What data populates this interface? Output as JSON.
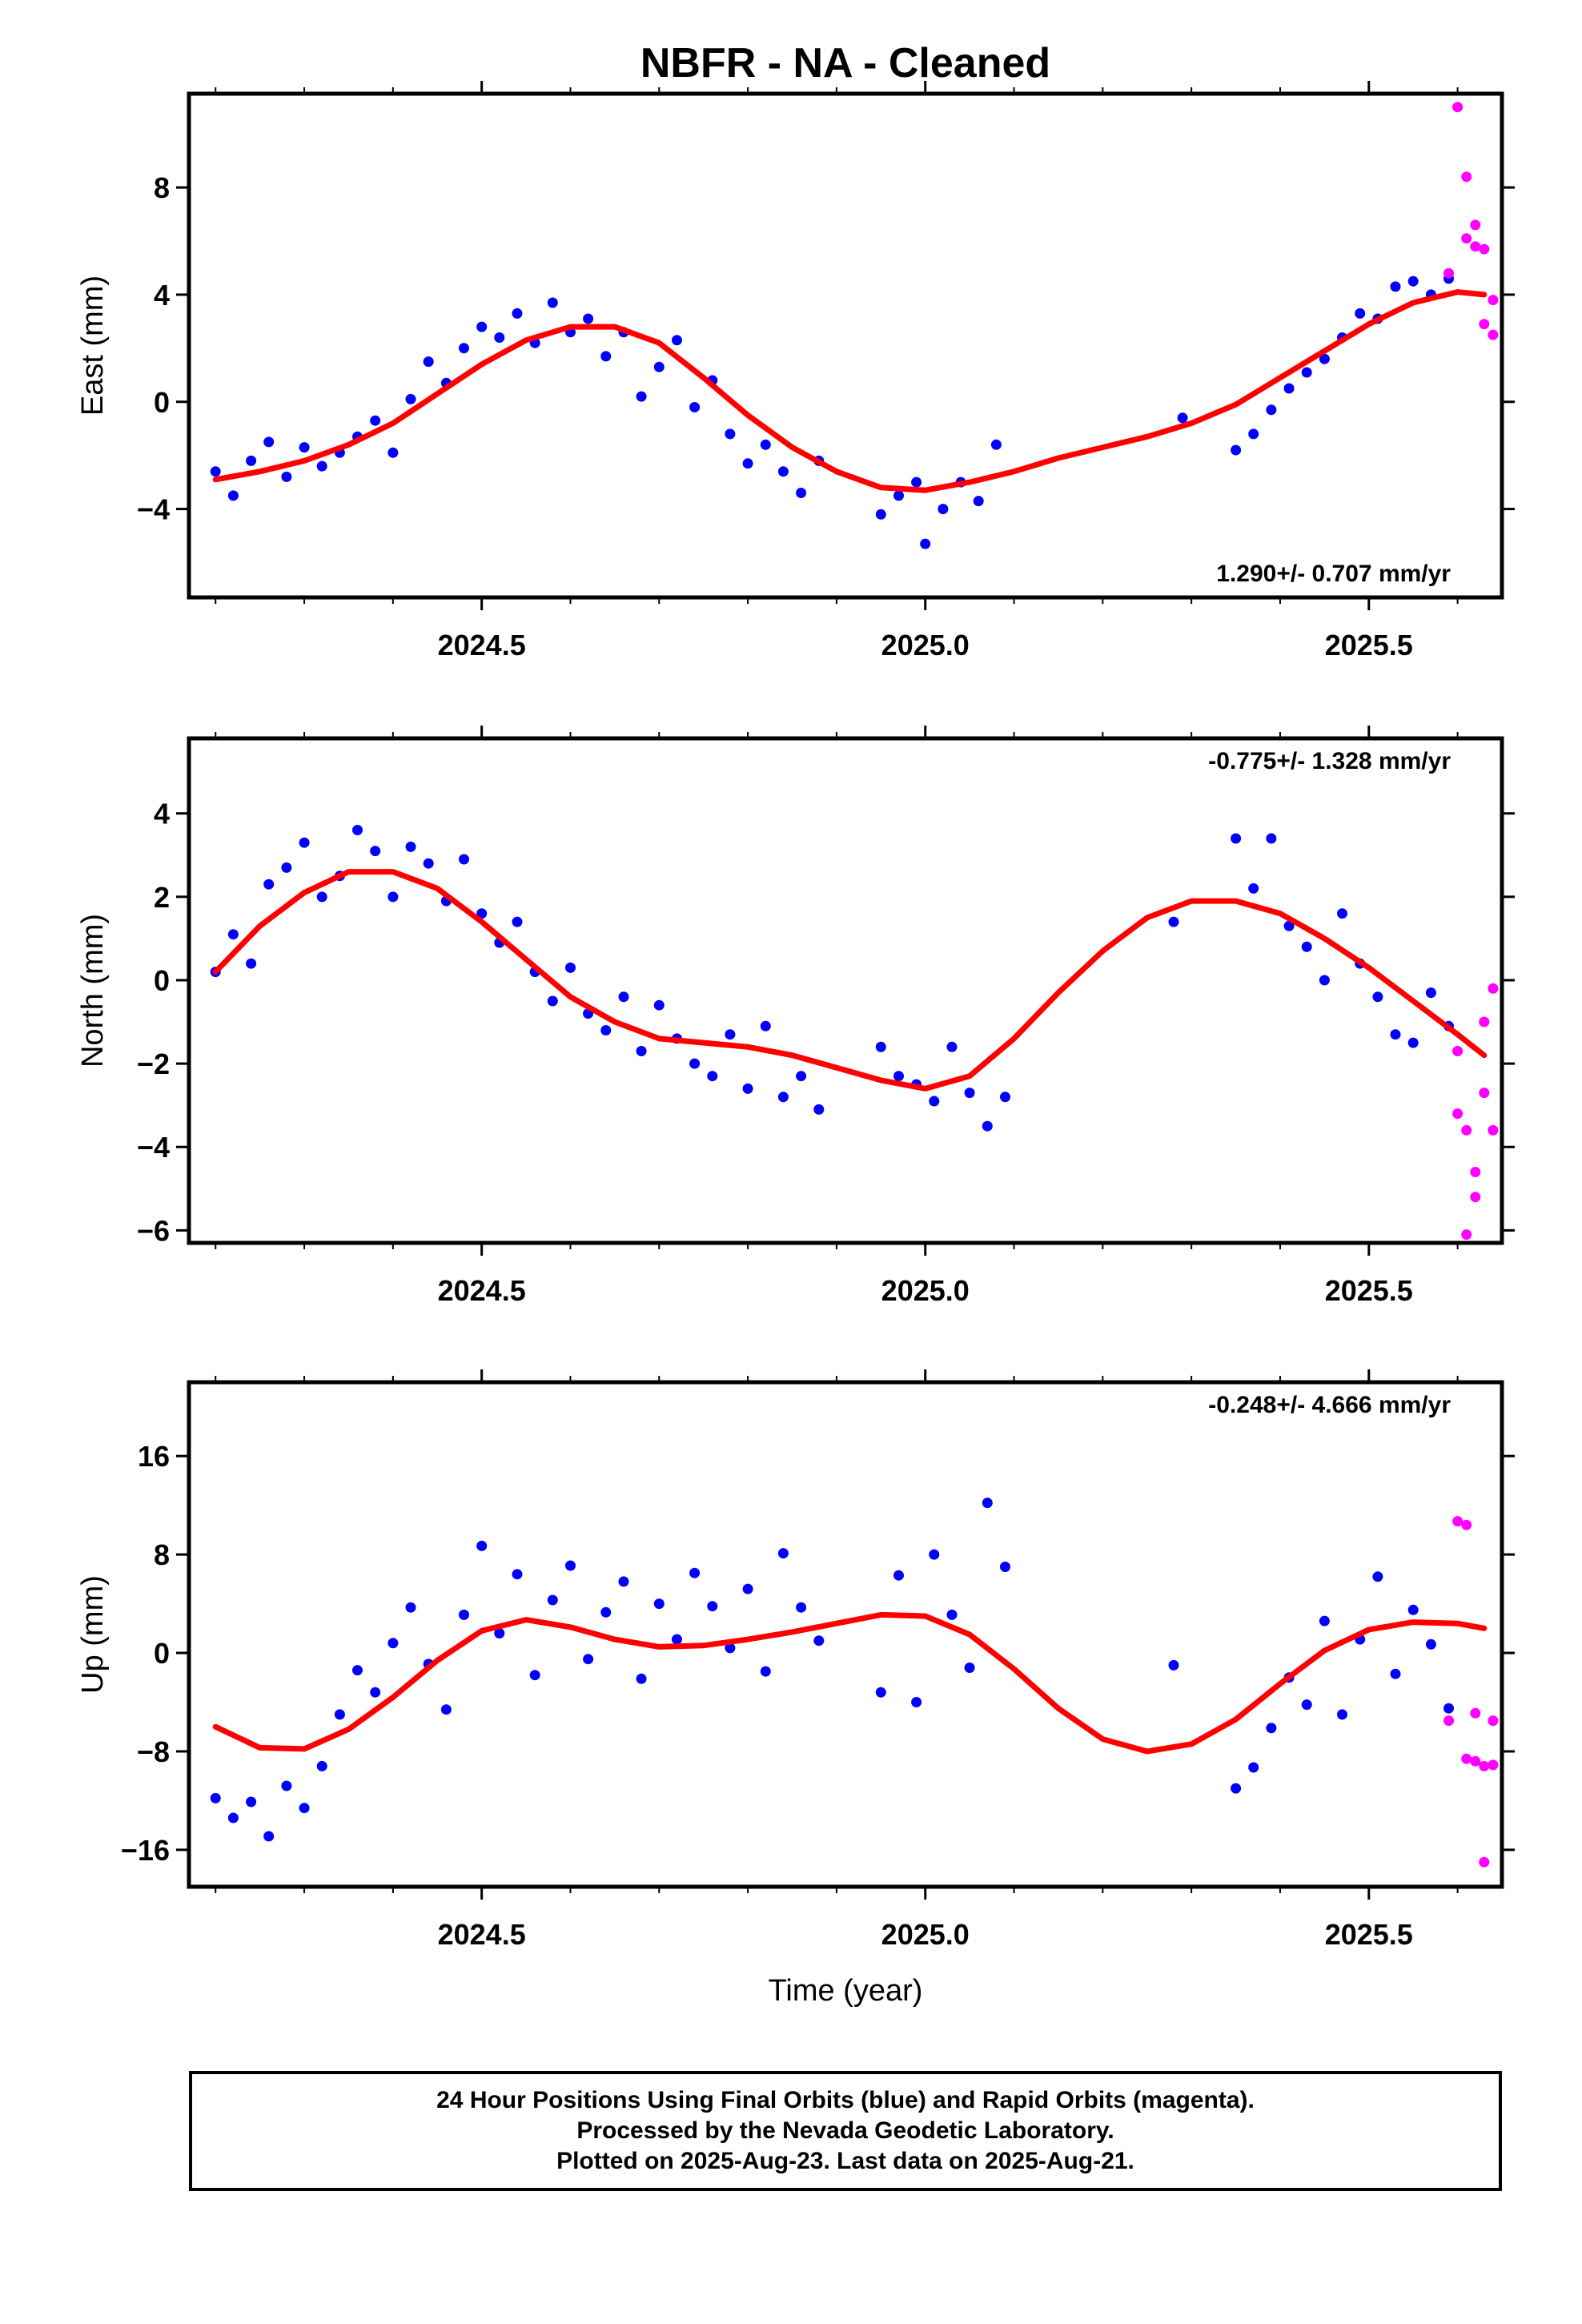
{
  "title": "NBFR  - NA - Cleaned",
  "colors": {
    "final": "#0000ff",
    "rapid": "#ff00ff",
    "model": "#ff0000",
    "frame": "#000000"
  },
  "x_axis": {
    "label": "Time (year)",
    "ticks": [
      "2024.5",
      "2025.0",
      "2025.5"
    ],
    "tick_values": [
      2024.5,
      2025.0,
      2025.5
    ],
    "xlim": [
      2024.17,
      2025.65
    ]
  },
  "footer": {
    "line1": "24 Hour Positions Using Final Orbits (blue) and Rapid Orbits (magenta).",
    "line2": "Processed by the Nevada Geodetic Laboratory.",
    "line3": "Plotted on 2025-Aug-23. Last data on 2025-Aug-21."
  },
  "chart_data": [
    {
      "type": "scatter",
      "ylabel": "East (mm)",
      "rate": "1.290+/- 0.707 mm/yr",
      "rate_position": "bottom-right",
      "ylim": [
        -7.3,
        11.5
      ],
      "yticks": [
        -4,
        0,
        4,
        8
      ],
      "ytick_labels": [
        "−4",
        "0",
        "4",
        "8"
      ],
      "series": [
        {
          "role": "final",
          "x": [
            2024.2,
            2024.22,
            2024.24,
            2024.26,
            2024.28,
            2024.3,
            2024.32,
            2024.34,
            2024.36,
            2024.38,
            2024.4,
            2024.42,
            2024.44,
            2024.46,
            2024.48,
            2024.5,
            2024.52,
            2024.54,
            2024.56,
            2024.58,
            2024.6,
            2024.62,
            2024.64,
            2024.66,
            2024.68,
            2024.7,
            2024.72,
            2024.74,
            2024.76,
            2024.78,
            2024.8,
            2024.82,
            2024.84,
            2024.86,
            2024.88,
            2024.95,
            2024.97,
            2024.99,
            2025.0,
            2025.02,
            2025.04,
            2025.06,
            2025.08,
            2025.29,
            2025.35,
            2025.37,
            2025.39,
            2025.41,
            2025.43,
            2025.45,
            2025.47,
            2025.49,
            2025.51,
            2025.53,
            2025.55,
            2025.57,
            2025.59
          ],
          "y": [
            -2.6,
            -3.5,
            -2.2,
            -1.5,
            -2.8,
            -1.7,
            -2.4,
            -1.9,
            -1.3,
            -0.7,
            -1.9,
            0.1,
            1.5,
            0.7,
            2.0,
            2.8,
            2.4,
            3.3,
            2.2,
            3.7,
            2.6,
            3.1,
            1.7,
            2.6,
            0.2,
            1.3,
            2.3,
            -0.2,
            0.8,
            -1.2,
            -2.3,
            -1.6,
            -2.6,
            -3.4,
            -2.2,
            -4.2,
            -3.5,
            -3.0,
            -5.3,
            -4.0,
            -3.0,
            -3.7,
            -1.6,
            -0.6,
            -1.8,
            -1.2,
            -0.3,
            0.5,
            1.1,
            1.6,
            2.4,
            3.3,
            3.1,
            4.3,
            4.5,
            4.0,
            4.6
          ]
        },
        {
          "role": "rapid",
          "x": [
            2025.59,
            2025.6,
            2025.61,
            2025.61,
            2025.62,
            2025.62,
            2025.63,
            2025.63,
            2025.64,
            2025.64
          ],
          "y": [
            4.8,
            11.0,
            8.4,
            6.1,
            6.6,
            5.8,
            5.7,
            2.9,
            2.5,
            3.8
          ]
        },
        {
          "role": "model",
          "x": [
            2024.2,
            2024.25,
            2024.3,
            2024.35,
            2024.4,
            2024.45,
            2024.5,
            2024.55,
            2024.6,
            2024.65,
            2024.7,
            2024.75,
            2024.8,
            2024.85,
            2024.9,
            2024.95,
            2025.0,
            2025.05,
            2025.1,
            2025.15,
            2025.2,
            2025.25,
            2025.3,
            2025.35,
            2025.4,
            2025.45,
            2025.5,
            2025.55,
            2025.6,
            2025.63
          ],
          "y": [
            -2.9,
            -2.6,
            -2.2,
            -1.6,
            -0.8,
            0.3,
            1.4,
            2.3,
            2.8,
            2.8,
            2.2,
            0.9,
            -0.5,
            -1.7,
            -2.6,
            -3.2,
            -3.3,
            -3.0,
            -2.6,
            -2.1,
            -1.7,
            -1.3,
            -0.8,
            -0.1,
            0.9,
            1.9,
            2.9,
            3.7,
            4.1,
            4.0
          ]
        }
      ]
    },
    {
      "type": "scatter",
      "ylabel": "North (mm)",
      "rate": "-0.775+/- 1.328 mm/yr",
      "rate_position": "top-right",
      "ylim": [
        -6.3,
        5.8
      ],
      "yticks": [
        -6,
        -4,
        -2,
        0,
        2,
        4
      ],
      "ytick_labels": [
        "−6",
        "−4",
        "−2",
        "0",
        "2",
        "4"
      ],
      "series": [
        {
          "role": "final",
          "x": [
            2024.2,
            2024.22,
            2024.24,
            2024.26,
            2024.28,
            2024.3,
            2024.32,
            2024.34,
            2024.36,
            2024.38,
            2024.4,
            2024.42,
            2024.44,
            2024.46,
            2024.48,
            2024.5,
            2024.52,
            2024.54,
            2024.56,
            2024.58,
            2024.6,
            2024.62,
            2024.64,
            2024.66,
            2024.68,
            2024.7,
            2024.72,
            2024.74,
            2024.76,
            2024.78,
            2024.8,
            2024.82,
            2024.84,
            2024.86,
            2024.88,
            2024.95,
            2024.97,
            2024.99,
            2025.01,
            2025.03,
            2025.05,
            2025.07,
            2025.09,
            2025.28,
            2025.35,
            2025.37,
            2025.39,
            2025.41,
            2025.43,
            2025.45,
            2025.47,
            2025.49,
            2025.51,
            2025.53,
            2025.55,
            2025.57,
            2025.59
          ],
          "y": [
            0.2,
            1.1,
            0.4,
            2.3,
            2.7,
            3.3,
            2.0,
            2.5,
            3.6,
            3.1,
            2.0,
            3.2,
            2.8,
            1.9,
            2.9,
            1.6,
            0.9,
            1.4,
            0.2,
            -0.5,
            0.3,
            -0.8,
            -1.2,
            -0.4,
            -1.7,
            -0.6,
            -1.4,
            -2.0,
            -2.3,
            -1.3,
            -2.6,
            -1.1,
            -2.8,
            -2.3,
            -3.1,
            -1.6,
            -2.3,
            -2.5,
            -2.9,
            -1.6,
            -2.7,
            -3.5,
            -2.8,
            1.4,
            3.4,
            2.2,
            3.4,
            1.3,
            0.8,
            0.0,
            1.6,
            0.4,
            -0.4,
            -1.3,
            -1.5,
            -0.3,
            -1.1
          ]
        },
        {
          "role": "rapid",
          "x": [
            2025.6,
            2025.6,
            2025.61,
            2025.61,
            2025.62,
            2025.62,
            2025.63,
            2025.63,
            2025.64,
            2025.64
          ],
          "y": [
            -1.7,
            -3.2,
            -6.1,
            -3.6,
            -4.6,
            -5.2,
            -2.7,
            -1.0,
            -0.2,
            -3.6
          ]
        },
        {
          "role": "model",
          "x": [
            2024.2,
            2024.25,
            2024.3,
            2024.35,
            2024.4,
            2024.45,
            2024.5,
            2024.55,
            2024.6,
            2024.65,
            2024.7,
            2024.75,
            2024.8,
            2024.85,
            2024.9,
            2024.95,
            2025.0,
            2025.05,
            2025.1,
            2025.15,
            2025.2,
            2025.25,
            2025.3,
            2025.35,
            2025.4,
            2025.45,
            2025.5,
            2025.55,
            2025.6,
            2025.63
          ],
          "y": [
            0.2,
            1.3,
            2.1,
            2.6,
            2.6,
            2.2,
            1.4,
            0.5,
            -0.4,
            -1.0,
            -1.4,
            -1.5,
            -1.6,
            -1.8,
            -2.1,
            -2.4,
            -2.6,
            -2.3,
            -1.4,
            -0.3,
            0.7,
            1.5,
            1.9,
            1.9,
            1.6,
            1.0,
            0.3,
            -0.5,
            -1.3,
            -1.8
          ]
        }
      ]
    },
    {
      "type": "scatter",
      "ylabel": "Up (mm)",
      "rate": "-0.248+/- 4.666 mm/yr",
      "rate_position": "top-right",
      "ylim": [
        -19,
        22
      ],
      "yticks": [
        -16,
        -8,
        0,
        8,
        16
      ],
      "ytick_labels": [
        "−16",
        "−8",
        "0",
        "8",
        "16"
      ],
      "series": [
        {
          "role": "final",
          "x": [
            2024.2,
            2024.22,
            2024.24,
            2024.26,
            2024.28,
            2024.3,
            2024.32,
            2024.34,
            2024.36,
            2024.38,
            2024.4,
            2024.42,
            2024.44,
            2024.46,
            2024.48,
            2024.5,
            2024.52,
            2024.54,
            2024.56,
            2024.58,
            2024.6,
            2024.62,
            2024.64,
            2024.66,
            2024.68,
            2024.7,
            2024.72,
            2024.74,
            2024.76,
            2024.78,
            2024.8,
            2024.82,
            2024.84,
            2024.86,
            2024.88,
            2024.95,
            2024.97,
            2024.99,
            2025.01,
            2025.03,
            2025.05,
            2025.07,
            2025.09,
            2025.28,
            2025.35,
            2025.37,
            2025.39,
            2025.41,
            2025.43,
            2025.45,
            2025.47,
            2025.49,
            2025.51,
            2025.53,
            2025.55,
            2025.57,
            2025.59
          ],
          "y": [
            -11.8,
            -13.4,
            -12.1,
            -14.9,
            -10.8,
            -12.6,
            -9.2,
            -5.0,
            -1.4,
            -3.2,
            0.8,
            3.7,
            -0.9,
            -4.6,
            3.1,
            8.7,
            1.6,
            6.4,
            -1.8,
            4.3,
            7.1,
            -0.5,
            3.3,
            5.8,
            -2.1,
            4.0,
            1.1,
            6.5,
            3.8,
            0.4,
            5.2,
            -1.5,
            8.1,
            3.7,
            1.0,
            -3.2,
            6.3,
            -4.0,
            8.0,
            3.1,
            -1.2,
            12.2,
            7.0,
            -1.0,
            -11.0,
            -9.3,
            -6.1,
            -2.0,
            -4.2,
            2.6,
            -5.0,
            1.1,
            6.2,
            -1.7,
            3.5,
            0.7,
            -4.5
          ]
        },
        {
          "role": "rapid",
          "x": [
            2025.59,
            2025.6,
            2025.61,
            2025.61,
            2025.62,
            2025.62,
            2025.63,
            2025.63,
            2025.64,
            2025.64
          ],
          "y": [
            -5.5,
            10.7,
            10.4,
            -8.6,
            -8.8,
            -4.9,
            -9.2,
            -17.0,
            -9.1,
            -5.5
          ]
        },
        {
          "role": "model",
          "x": [
            2024.2,
            2024.25,
            2024.3,
            2024.35,
            2024.4,
            2024.45,
            2024.5,
            2024.55,
            2024.6,
            2024.65,
            2024.7,
            2024.75,
            2024.8,
            2024.85,
            2024.9,
            2024.95,
            2025.0,
            2025.05,
            2025.1,
            2025.15,
            2025.2,
            2025.25,
            2025.3,
            2025.35,
            2025.4,
            2025.45,
            2025.5,
            2025.55,
            2025.6,
            2025.63
          ],
          "y": [
            -6.0,
            -7.7,
            -7.8,
            -6.2,
            -3.6,
            -0.6,
            1.8,
            2.7,
            2.1,
            1.1,
            0.5,
            0.6,
            1.1,
            1.7,
            2.4,
            3.1,
            3.0,
            1.5,
            -1.3,
            -4.5,
            -7.0,
            -8.0,
            -7.4,
            -5.4,
            -2.5,
            0.2,
            1.9,
            2.5,
            2.4,
            2.0
          ]
        }
      ]
    }
  ]
}
